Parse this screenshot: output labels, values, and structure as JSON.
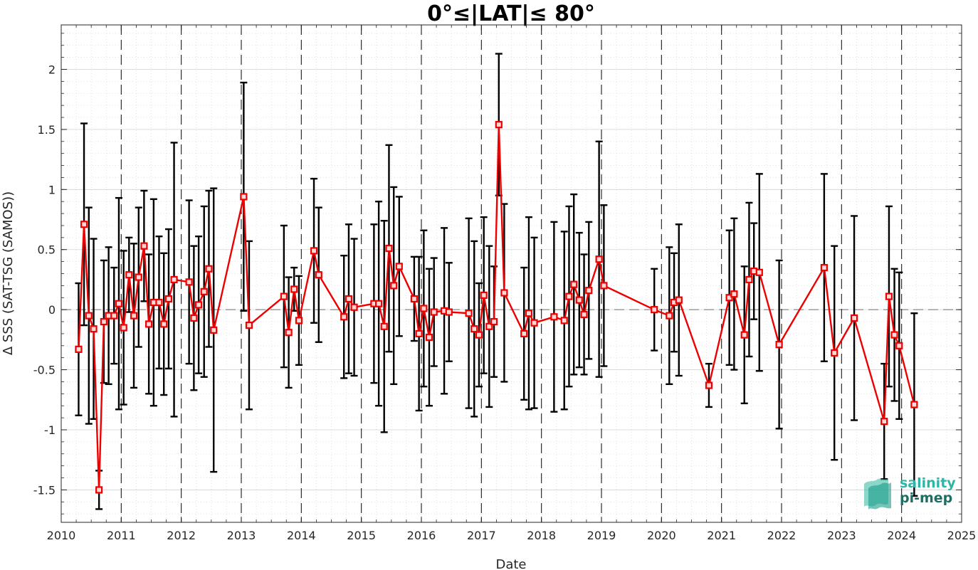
{
  "chart_data": {
    "type": "line",
    "title": "0°≤|LAT|≤ 80°",
    "xlabel": "Date",
    "ylabel": "Δ SSS (SAT-TSG (SAMOS))",
    "xlim": [
      2010,
      2025
    ],
    "ylim": [
      -1.77,
      2.37
    ],
    "x_ticks": [
      2010,
      2011,
      2012,
      2013,
      2014,
      2015,
      2016,
      2017,
      2018,
      2019,
      2020,
      2021,
      2022,
      2023,
      2024,
      2025
    ],
    "x_tick_labels": [
      "2010",
      "2011",
      "2012",
      "2013",
      "2014",
      "2015",
      "2016",
      "2017",
      "2018",
      "2019",
      "2020",
      "2021",
      "2022",
      "2023",
      "2024",
      "2025"
    ],
    "y_ticks": [
      -1.5,
      -1,
      -0.5,
      0,
      0.5,
      1,
      1.5,
      2
    ],
    "y_tick_labels": [
      "-1.5",
      "-1",
      "-0.5",
      "0",
      "0.5",
      "1",
      "1.5",
      "2"
    ],
    "grid": true,
    "year_dividers": true,
    "zero_line": true,
    "colors": {
      "series": "#ee0000",
      "errorbars": "#000000",
      "grid": "#d9d9d9"
    },
    "series": [
      {
        "x": [
          2010.29,
          2010.38,
          2010.46,
          2010.54,
          2010.63,
          2010.71,
          2010.79,
          2010.88,
          2010.96,
          2011.04,
          2011.13,
          2011.21,
          2011.29,
          2011.38,
          2011.46,
          2011.54,
          2011.63,
          2011.71,
          2011.79,
          2011.88,
          2012.13,
          2012.21,
          2012.29,
          2012.38,
          2012.46,
          2012.54,
          2013.04,
          2013.13,
          2013.71,
          2013.79,
          2013.88,
          2013.96,
          2014.21,
          2014.29,
          2014.71,
          2014.79,
          2014.88,
          2015.21,
          2015.29,
          2015.38,
          2015.46,
          2015.54,
          2015.63,
          2015.88,
          2015.96,
          2016.04,
          2016.13,
          2016.21,
          2016.38,
          2016.46,
          2016.79,
          2016.88,
          2016.96,
          2017.04,
          2017.13,
          2017.21,
          2017.29,
          2017.38,
          2017.71,
          2017.79,
          2017.88,
          2018.21,
          2018.38,
          2018.46,
          2018.54,
          2018.63,
          2018.71,
          2018.79,
          2018.96,
          2019.04,
          2019.88,
          2020.13,
          2020.21,
          2020.29,
          2020.79,
          2021.13,
          2021.21,
          2021.38,
          2021.46,
          2021.54,
          2021.63,
          2021.96,
          2022.71,
          2022.88,
          2023.21,
          2023.71,
          2023.79,
          2023.88,
          2023.96,
          2024.21
        ],
        "y": [
          -0.33,
          0.71,
          -0.05,
          -0.16,
          -1.5,
          -0.1,
          -0.05,
          -0.05,
          0.05,
          -0.15,
          0.29,
          -0.05,
          0.27,
          0.53,
          -0.12,
          0.06,
          0.06,
          -0.12,
          0.09,
          0.25,
          0.23,
          -0.07,
          0.04,
          0.15,
          0.34,
          -0.17,
          0.94,
          -0.13,
          0.11,
          -0.19,
          0.17,
          -0.09,
          0.49,
          0.29,
          -0.06,
          0.09,
          0.02,
          0.05,
          0.05,
          -0.14,
          0.51,
          0.2,
          0.36,
          0.09,
          -0.2,
          0.01,
          -0.23,
          -0.02,
          -0.01,
          -0.02,
          -0.03,
          -0.16,
          -0.21,
          0.12,
          -0.14,
          -0.1,
          1.54,
          0.14,
          -0.2,
          -0.03,
          -0.11,
          -0.06,
          -0.09,
          0.11,
          0.21,
          0.08,
          -0.04,
          0.16,
          0.42,
          0.2,
          0.0,
          -0.05,
          0.06,
          0.08,
          -0.63,
          0.1,
          0.13,
          -0.21,
          0.25,
          0.32,
          0.31,
          -0.29,
          0.35,
          -0.36,
          -0.07,
          -0.93,
          0.11,
          -0.21,
          -0.3,
          -0.79
        ],
        "err": [
          0.55,
          0.84,
          0.9,
          0.75,
          0.16,
          0.51,
          0.57,
          0.4,
          0.88,
          0.64,
          0.31,
          0.6,
          0.58,
          0.46,
          0.58,
          0.86,
          0.55,
          0.59,
          0.58,
          1.14,
          0.68,
          0.6,
          0.57,
          0.71,
          0.65,
          1.18,
          0.95,
          0.7,
          0.59,
          0.46,
          0.18,
          0.37,
          0.6,
          0.56,
          0.51,
          0.62,
          0.57,
          0.66,
          0.85,
          0.88,
          0.86,
          0.82,
          0.58,
          0.35,
          0.64,
          0.65,
          0.57,
          0.45,
          0.69,
          0.41,
          0.79,
          0.73,
          0.43,
          0.65,
          0.67,
          0.46,
          0.59,
          0.74,
          0.55,
          0.8,
          0.71,
          0.79,
          0.74,
          0.75,
          0.75,
          0.56,
          0.5,
          0.57,
          0.98,
          0.67,
          0.34,
          0.57,
          0.41,
          0.63,
          0.18,
          0.56,
          0.63,
          0.57,
          0.64,
          0.4,
          0.82,
          0.7,
          0.78,
          0.89,
          0.85,
          0.48,
          0.75,
          0.55,
          0.61,
          0.76
        ]
      }
    ]
  },
  "logo": {
    "line1": "salinity",
    "line2": "pi-mep"
  }
}
